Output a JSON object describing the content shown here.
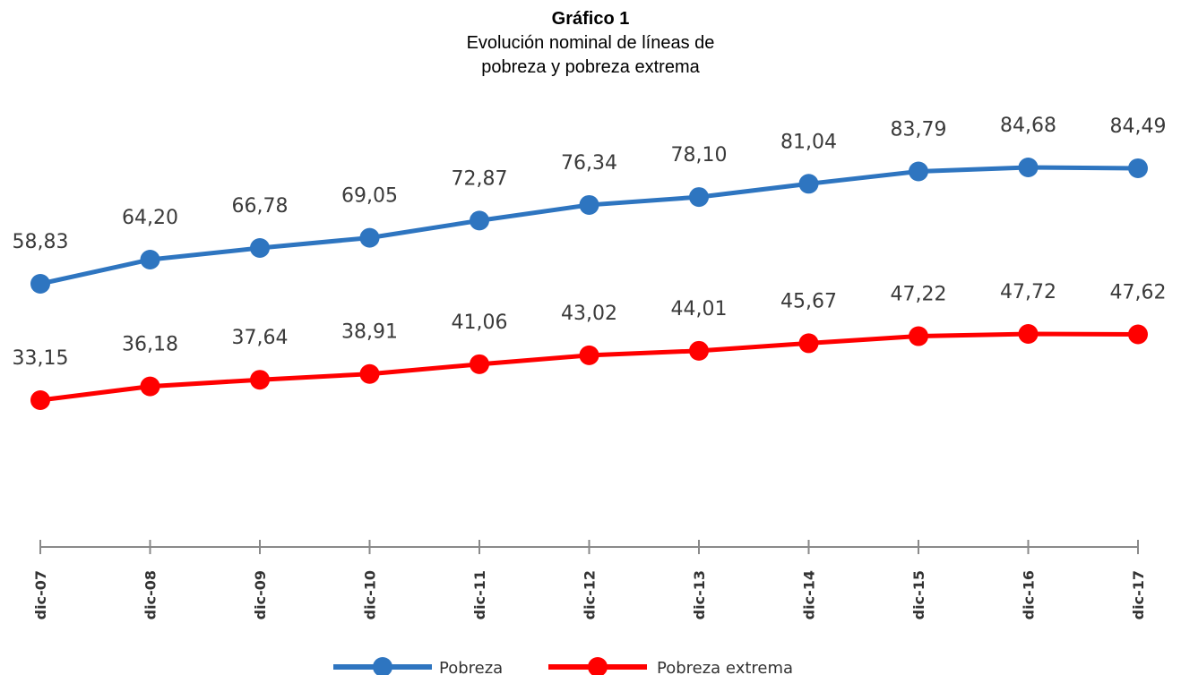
{
  "chart_data": {
    "type": "line",
    "title": "Gráfico 1",
    "subtitle": [
      "Evolución nominal de líneas de",
      "pobreza y pobreza extrema"
    ],
    "categories": [
      "dic-07",
      "dic-08",
      "dic-09",
      "dic-10",
      "dic-11",
      "dic-12",
      "dic-13",
      "dic-14",
      "dic-15",
      "dic-16",
      "dic-17"
    ],
    "series": [
      {
        "name": "Pobreza",
        "color": "#2e75c0",
        "values": [
          58.83,
          64.2,
          66.78,
          69.05,
          72.87,
          76.34,
          78.1,
          81.04,
          83.79,
          84.68,
          84.49
        ],
        "labels": [
          "58,83",
          "64,20",
          "66,78",
          "69,05",
          "72,87",
          "76,34",
          "78,10",
          "81,04",
          "83,79",
          "84,68",
          "84,49"
        ]
      },
      {
        "name": "Pobreza extrema",
        "color": "#ff0000",
        "values": [
          33.15,
          36.18,
          37.64,
          38.91,
          41.06,
          43.02,
          44.01,
          45.67,
          47.22,
          47.72,
          47.62
        ],
        "labels": [
          "33,15",
          "36,18",
          "37,64",
          "38,91",
          "41,06",
          "43,02",
          "44,01",
          "45,67",
          "47,22",
          "47,72",
          "47,62"
        ]
      }
    ],
    "grid": false,
    "legend": "bottom-center"
  }
}
